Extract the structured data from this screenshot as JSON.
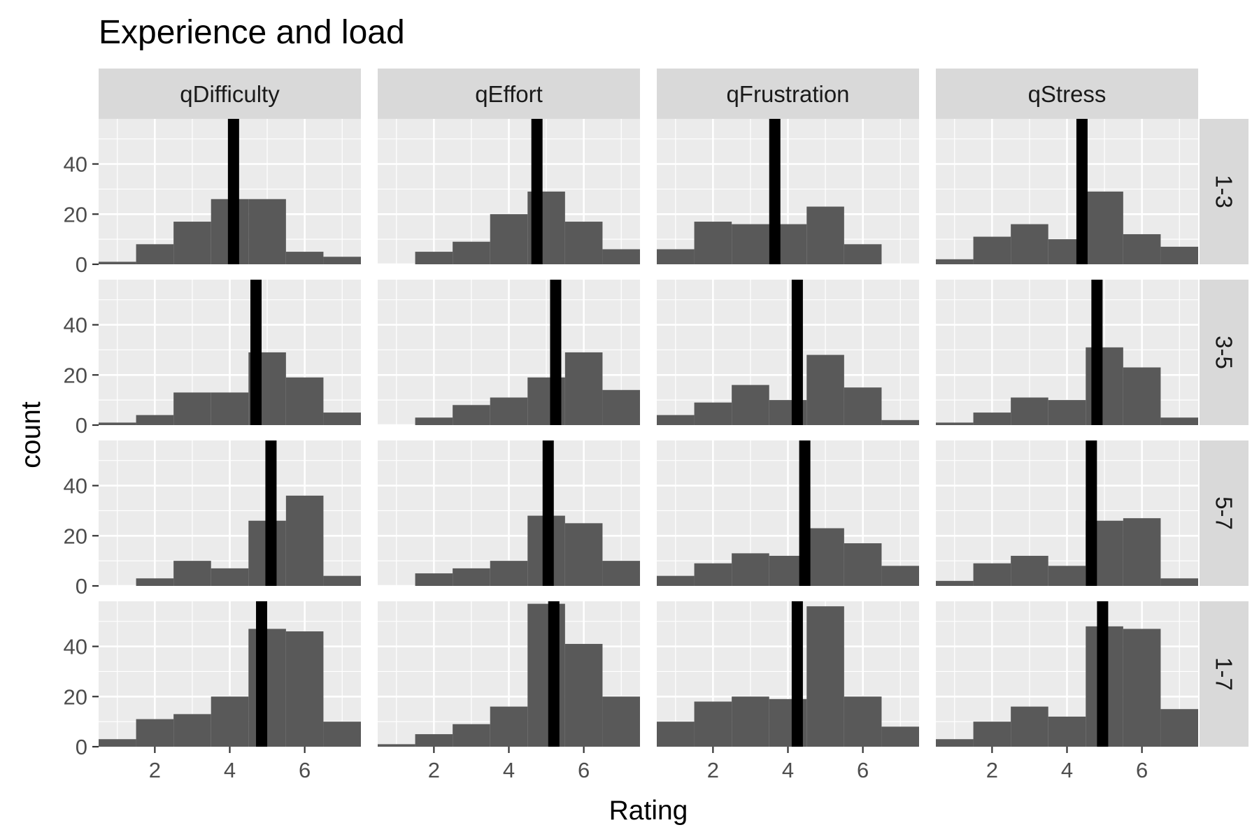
{
  "chart_data": {
    "type": "bar",
    "title": "Experience and load",
    "xlabel": "Rating",
    "ylabel": "count",
    "columns": [
      "qDifficulty",
      "qEffort",
      "qFrustration",
      "qStress"
    ],
    "rows": [
      "1-3",
      "3-5",
      "5-7",
      "1-7"
    ],
    "x_bins": [
      1,
      2,
      3,
      4,
      5,
      6,
      7
    ],
    "bin_width": 1,
    "xlim": [
      0.5,
      7.5
    ],
    "ylim": [
      0,
      58
    ],
    "x_ticks": [
      2,
      4,
      6
    ],
    "y_ticks": [
      0,
      20,
      40
    ],
    "grid": true,
    "colors": {
      "bar": "#595959",
      "mean_line": "#000000",
      "panel_background": "#ebebeb",
      "strip_background": "#d9d9d9",
      "grid": "#ffffff"
    },
    "panels": [
      {
        "row": "1-3",
        "column": "qDifficulty",
        "counts": [
          1,
          8,
          17,
          26,
          26,
          5,
          3
        ],
        "mean": 4.1
      },
      {
        "row": "1-3",
        "column": "qEffort",
        "counts": [
          0,
          5,
          9,
          20,
          29,
          17,
          6
        ],
        "mean": 4.75
      },
      {
        "row": "1-3",
        "column": "qFrustration",
        "counts": [
          6,
          17,
          16,
          16,
          23,
          8,
          0
        ],
        "mean": 3.65
      },
      {
        "row": "1-3",
        "column": "qStress",
        "counts": [
          2,
          11,
          16,
          10,
          29,
          12,
          7
        ],
        "mean": 4.4
      },
      {
        "row": "3-5",
        "column": "qDifficulty",
        "counts": [
          1,
          4,
          13,
          13,
          29,
          19,
          5
        ],
        "mean": 4.7
      },
      {
        "row": "3-5",
        "column": "qEffort",
        "counts": [
          0,
          3,
          8,
          11,
          19,
          29,
          14
        ],
        "mean": 5.25
      },
      {
        "row": "3-5",
        "column": "qFrustration",
        "counts": [
          4,
          9,
          16,
          10,
          28,
          15,
          2
        ],
        "mean": 4.25
      },
      {
        "row": "3-5",
        "column": "qStress",
        "counts": [
          1,
          5,
          11,
          10,
          31,
          23,
          3
        ],
        "mean": 4.8
      },
      {
        "row": "5-7",
        "column": "qDifficulty",
        "counts": [
          0,
          3,
          10,
          7,
          26,
          36,
          4
        ],
        "mean": 5.1
      },
      {
        "row": "5-7",
        "column": "qEffort",
        "counts": [
          0,
          5,
          7,
          10,
          28,
          25,
          10
        ],
        "mean": 5.05
      },
      {
        "row": "5-7",
        "column": "qFrustration",
        "counts": [
          4,
          9,
          13,
          12,
          23,
          17,
          8
        ],
        "mean": 4.45
      },
      {
        "row": "5-7",
        "column": "qStress",
        "counts": [
          2,
          9,
          12,
          8,
          26,
          27,
          3
        ],
        "mean": 4.65
      },
      {
        "row": "1-7",
        "column": "qDifficulty",
        "counts": [
          3,
          11,
          13,
          20,
          47,
          46,
          10
        ],
        "mean": 4.85
      },
      {
        "row": "1-7",
        "column": "qEffort",
        "counts": [
          1,
          5,
          9,
          16,
          57,
          41,
          20
        ],
        "mean": 5.2
      },
      {
        "row": "1-7",
        "column": "qFrustration",
        "counts": [
          10,
          18,
          20,
          19,
          56,
          20,
          8
        ],
        "mean": 4.25
      },
      {
        "row": "1-7",
        "column": "qStress",
        "counts": [
          3,
          10,
          16,
          12,
          48,
          47,
          15
        ],
        "mean": 4.95
      }
    ]
  }
}
